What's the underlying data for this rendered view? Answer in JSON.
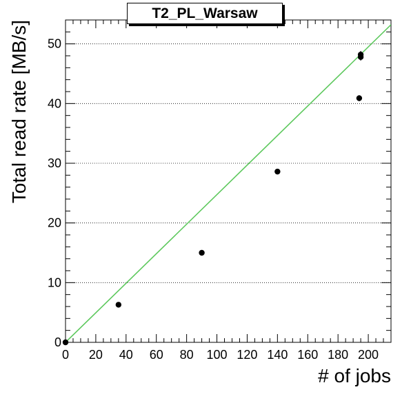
{
  "chart_data": {
    "type": "scatter",
    "title": "T2_PL_Warsaw",
    "xlabel": "# of jobs",
    "ylabel": "Total read rate [MB/s]",
    "xlim": [
      0,
      215
    ],
    "ylim": [
      0,
      54
    ],
    "x_ticks": [
      0,
      20,
      40,
      60,
      80,
      100,
      120,
      140,
      160,
      180,
      200
    ],
    "y_ticks": [
      0,
      10,
      20,
      30,
      40,
      50
    ],
    "grid": "horizontal dotted lines at major y ticks",
    "series": [
      {
        "type": "scatter",
        "color": "#000000",
        "points": [
          {
            "x": 0,
            "y": 0
          },
          {
            "x": 35,
            "y": 6.3
          },
          {
            "x": 90,
            "y": 15.0
          },
          {
            "x": 140,
            "y": 28.6
          },
          {
            "x": 194,
            "y": 40.9
          },
          {
            "x": 195,
            "y": 47.8
          },
          {
            "x": 195,
            "y": 48.2
          }
        ],
        "y_errors": [
          0.15,
          0.2,
          0.25,
          0.4,
          0.5,
          0.6,
          0.6
        ]
      },
      {
        "type": "line",
        "color": "#5cc85c",
        "x": [
          0,
          215
        ],
        "y": [
          0,
          53.2
        ]
      }
    ]
  }
}
